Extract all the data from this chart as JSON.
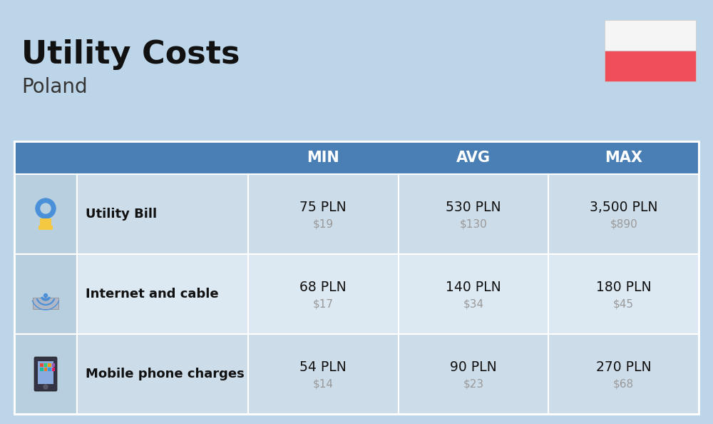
{
  "title": "Utility Costs",
  "subtitle": "Poland",
  "background_color": "#bdd5e8",
  "table_header_bg": "#4a7fb5",
  "header_text_color": "#ffffff",
  "rows": [
    {
      "label": "Utility Bill",
      "min_pln": "75 PLN",
      "min_usd": "$19",
      "avg_pln": "530 PLN",
      "avg_usd": "$130",
      "max_pln": "3,500 PLN",
      "max_usd": "$890"
    },
    {
      "label": "Internet and cable",
      "min_pln": "68 PLN",
      "min_usd": "$17",
      "avg_pln": "140 PLN",
      "avg_usd": "$34",
      "max_pln": "180 PLN",
      "max_usd": "$45"
    },
    {
      "label": "Mobile phone charges",
      "min_pln": "54 PLN",
      "min_usd": "$14",
      "avg_pln": "90 PLN",
      "avg_usd": "$23",
      "max_pln": "270 PLN",
      "max_usd": "$68"
    }
  ],
  "flag_white": "#f5f5f5",
  "flag_red": "#f04e5a",
  "pln_color": "#111111",
  "usd_color": "#999999",
  "label_color": "#111111",
  "row_bg_odd": "#cddce9",
  "row_bg_even": "#dce8f2",
  "icon_col_bg": "#b8cfe0",
  "cell_border": "#ffffff",
  "title_color": "#111111",
  "subtitle_color": "#333333"
}
